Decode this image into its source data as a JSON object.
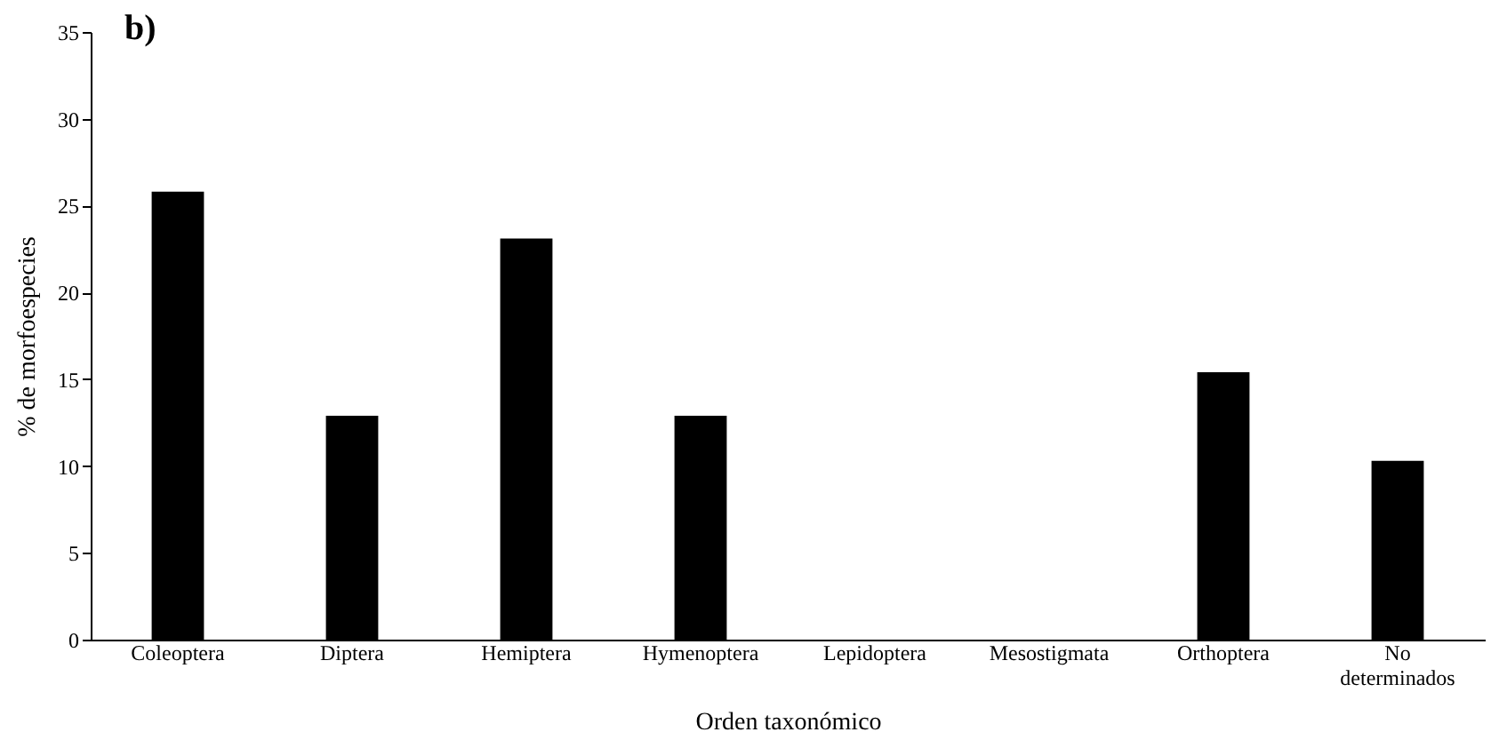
{
  "chart_data": {
    "type": "bar",
    "title": "b)",
    "xlabel": "Orden taxonómico",
    "ylabel": "% de morfoespecies",
    "categories": [
      "Coleoptera",
      "Diptera",
      "Hemiptera",
      "Hymenoptera",
      "Lepidoptera",
      "Mesostigmata",
      "Orthoptera",
      "No determinados"
    ],
    "values": [
      25.8,
      12.9,
      23.1,
      12.9,
      0,
      0,
      15.4,
      10.3
    ],
    "color": "#000000",
    "ylim": [
      0,
      35
    ],
    "yticks": [
      0,
      5,
      10,
      15,
      20,
      25,
      30,
      35
    ],
    "grid": false
  }
}
